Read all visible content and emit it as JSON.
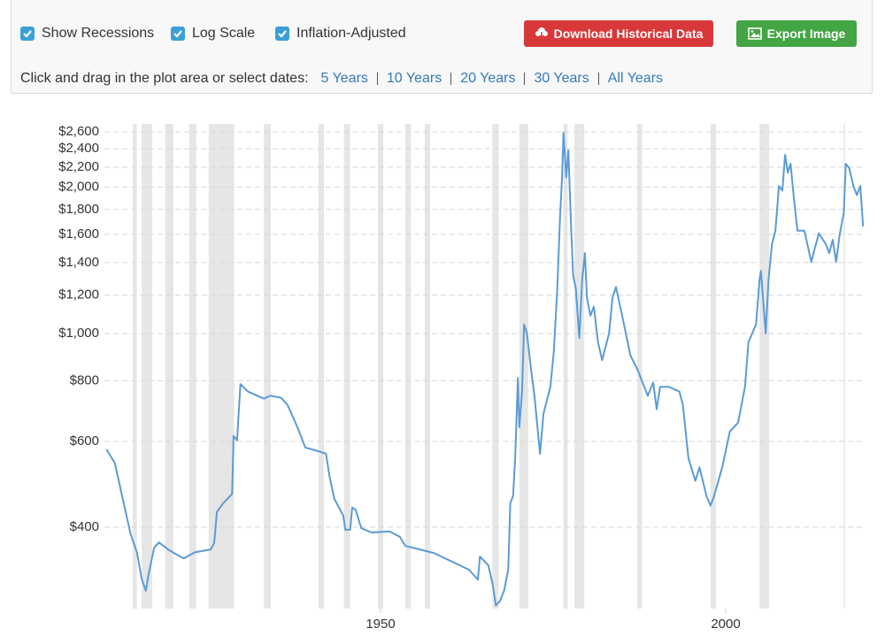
{
  "controls": {
    "checkboxes": [
      {
        "label": "Show Recessions",
        "checked": true
      },
      {
        "label": "Log Scale",
        "checked": true
      },
      {
        "label": "Inflation-Adjusted",
        "checked": true
      }
    ],
    "buttons": [
      {
        "label": "Download Historical Data",
        "color": "#d9383a"
      },
      {
        "label": "Export Image",
        "color": "#43a544"
      }
    ],
    "prompt": "Click and drag in the plot area or select dates:",
    "ranges": [
      "5 Years",
      "10 Years",
      "20 Years",
      "30 Years",
      "All Years"
    ]
  },
  "chart_data": {
    "type": "line",
    "x": [
      1910.3,
      1911.5,
      1912.8,
      1913.8,
      1914.7,
      1915.4,
      1916.0,
      1916.4,
      1917.2,
      1917.9,
      1919.2,
      1920.5,
      1921.5,
      1923.1,
      1925.4,
      1925.9,
      1926.3,
      1927.2,
      1928.5,
      1928.7,
      1929.2,
      1929.7,
      1930.8,
      1933.1,
      1934.0,
      1935.6,
      1936.5,
      1937.4,
      1938.2,
      1939.1,
      1941.0,
      1942.1,
      1942.6,
      1943.3,
      1944.6,
      1944.9,
      1945.6,
      1945.9,
      1946.4,
      1947.2,
      1948.7,
      1951.3,
      1952.8,
      1953.6,
      1957.7,
      1962.8,
      1964.1,
      1964.4,
      1965.6,
      1966.2,
      1966.7,
      1967.3,
      1967.9,
      1968.5,
      1968.8,
      1969.2,
      1969.5,
      1969.9,
      1970.1,
      1970.5,
      1970.8,
      1971.2,
      1971.8,
      1972.3,
      1973.1,
      1973.6,
      1974.6,
      1975.1,
      1975.6,
      1976.0,
      1976.3,
      1976.5,
      1976.9,
      1977.2,
      1977.6,
      1977.9,
      1978.3,
      1978.8,
      1979.2,
      1979.6,
      1979.9,
      1980.4,
      1980.9,
      1981.5,
      1982.1,
      1983.1,
      1983.6,
      1984.1,
      1985.0,
      1986.2,
      1987.2,
      1988.7,
      1989.5,
      1990.0,
      1990.5,
      1991.8,
      1993.3,
      1993.8,
      1994.6,
      1995.6,
      1996.2,
      1997.2,
      1997.8,
      1998.2,
      1999.5,
      2000.6,
      2001.8,
      2002.8,
      2003.3,
      2004.4,
      2004.9,
      2005.1,
      2005.8,
      2006.2,
      2006.7,
      2007.2,
      2007.7,
      2008.2,
      2008.6,
      2009.0,
      2009.4,
      2009.9,
      2010.4,
      2011.4,
      2012.4,
      2012.9,
      2013.5,
      2014.5,
      2015.0,
      2015.5,
      2016.0,
      2016.5,
      2017.1,
      2017.4,
      2017.9,
      2018.5,
      2019.0,
      2019.5,
      2019.9
    ],
    "series": [
      {
        "color": "#5b9bd5",
        "values": [
          578,
          542,
          448,
          387,
          355,
          313,
          296,
          320,
          363,
          372,
          360,
          351,
          345,
          355,
          360,
          371,
          430,
          448,
          468,
          616,
          603,
          787,
          760,
          735,
          745,
          738,
          714,
          670,
          629,
          583,
          573,
          566,
          509,
          458,
          422,
          395,
          395,
          439,
          434,
          398,
          390,
          392,
          382,
          366,
          354,
          327,
          312,
          348,
          334,
          307,
          276,
          282,
          296,
          327,
          448,
          464,
          554,
          810,
          642,
          760,
          1044,
          1001,
          845,
          745,
          566,
          684,
          777,
          920,
          1237,
          1734,
          2097,
          2591,
          2097,
          2381,
          1662,
          1318,
          1237,
          980,
          1290,
          1464,
          1185,
          1089,
          1136,
          960,
          882,
          1001,
          1185,
          1247,
          1089,
          901,
          845,
          745,
          793,
          699,
          777,
          777,
          760,
          714,
          554,
          498,
          531,
          464,
          443,
          458,
          531,
          629,
          656,
          777,
          960,
          1044,
          1290,
          1346,
          1001,
          1290,
          1528,
          1628,
          2011,
          1968,
          2331,
          2142,
          2235,
          1887,
          1628,
          1628,
          1404,
          1496,
          1607,
          1528,
          1464,
          1560,
          1404,
          1594,
          1771,
          2235,
          2188,
          2011,
          1927,
          2011,
          1662
        ]
      }
    ],
    "xlim": [
      1910,
      2020
    ],
    "ylim": [
      272,
      2700
    ],
    "log_y": true,
    "grid": true,
    "xticks": [
      1950,
      2000
    ],
    "yticks": [
      {
        "value": 400,
        "label": "$400"
      },
      {
        "value": 600,
        "label": "$600"
      },
      {
        "value": 800,
        "label": "$800"
      },
      {
        "value": 1000,
        "label": "$1,000"
      },
      {
        "value": 1200,
        "label": "$1,200"
      },
      {
        "value": 1400,
        "label": "$1,400"
      },
      {
        "value": 1600,
        "label": "$1,600"
      },
      {
        "value": 1800,
        "label": "$1,800"
      },
      {
        "value": 2000,
        "label": "$2,000"
      },
      {
        "value": 2200,
        "label": "$2,200"
      },
      {
        "value": 2400,
        "label": "$2,400"
      },
      {
        "value": 2600,
        "label": "$2,600"
      }
    ],
    "recessions": [
      [
        1914.1,
        1914.7
      ],
      [
        1915.4,
        1916.9
      ],
      [
        1918.8,
        1920.0
      ],
      [
        1922.3,
        1923.3
      ],
      [
        1925.1,
        1928.8
      ],
      [
        1933.1,
        1934.1
      ],
      [
        1941.0,
        1941.8
      ],
      [
        1944.7,
        1945.6
      ],
      [
        1949.6,
        1950.4
      ],
      [
        1953.6,
        1954.4
      ],
      [
        1956.4,
        1957.2
      ],
      [
        1966.2,
        1967.1
      ],
      [
        1970.1,
        1971.4
      ],
      [
        1976.5,
        1977.1
      ],
      [
        1978.1,
        1979.5
      ],
      [
        1987.2,
        1987.9
      ],
      [
        1997.8,
        1998.6
      ],
      [
        2004.9,
        2006.3
      ],
      [
        2017.1,
        2017.3
      ]
    ],
    "recession_color": "#e6e6e6"
  }
}
